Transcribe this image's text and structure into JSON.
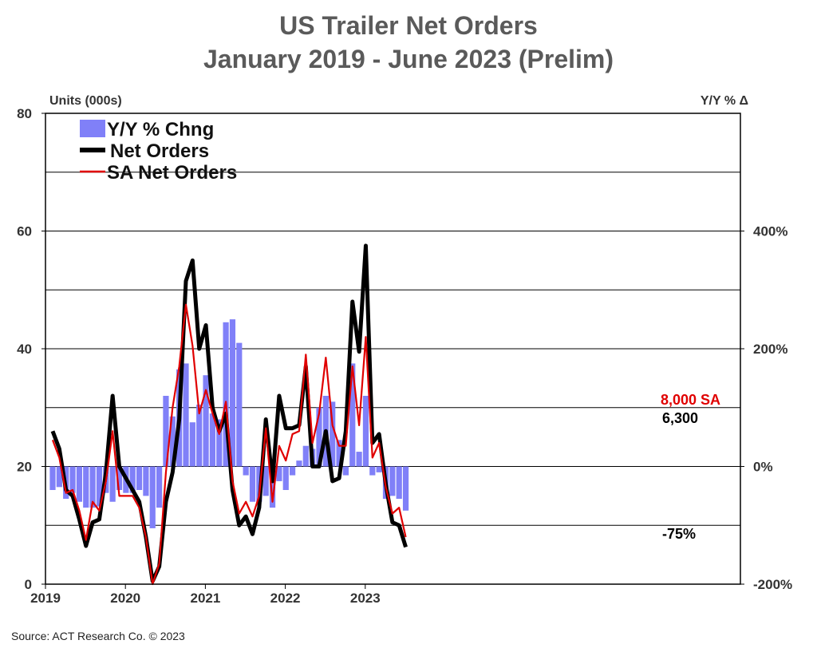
{
  "title": "US Trailer Net Orders",
  "subtitle": "January 2019 - June 2023 (Prelim)",
  "source": "Source: ACT Research Co. © 2023",
  "chart_data": {
    "type": "line",
    "left_axis_label": "Units (000s)",
    "right_axis_label": "Y/Y % Δ",
    "left_ticks": [
      "80",
      "60",
      "40",
      "20",
      "0"
    ],
    "left_range": [
      0,
      80
    ],
    "right_ticks": [
      "400%",
      "200%",
      "0%",
      "-200%"
    ],
    "right_range": [
      -200,
      600
    ],
    "x_tick_labels": [
      "2019",
      "2020",
      "2021",
      "2022",
      "2023"
    ],
    "colors": {
      "yoy": "#8080f8",
      "net": "#000000",
      "sa": "#e00000",
      "sa_label": "#e00000"
    },
    "legend": [
      "Y/Y % Chng",
      "Net Orders",
      "SA Net Orders"
    ],
    "grid": true,
    "annotations": {
      "sa_last": "8,000 SA",
      "net_last": "6,300",
      "yoy_last": "-75%"
    },
    "months": [
      "2019-01",
      "2019-02",
      "2019-03",
      "2019-04",
      "2019-05",
      "2019-06",
      "2019-07",
      "2019-08",
      "2019-09",
      "2019-10",
      "2019-11",
      "2019-12",
      "2020-01",
      "2020-02",
      "2020-03",
      "2020-04",
      "2020-05",
      "2020-06",
      "2020-07",
      "2020-08",
      "2020-09",
      "2020-10",
      "2020-11",
      "2020-12",
      "2021-01",
      "2021-02",
      "2021-03",
      "2021-04",
      "2021-05",
      "2021-06",
      "2021-07",
      "2021-08",
      "2021-09",
      "2021-10",
      "2021-11",
      "2021-12",
      "2022-01",
      "2022-02",
      "2022-03",
      "2022-04",
      "2022-05",
      "2022-06",
      "2022-07",
      "2022-08",
      "2022-09",
      "2022-10",
      "2022-11",
      "2022-12",
      "2023-01",
      "2023-02",
      "2023-03",
      "2023-04",
      "2023-05",
      "2023-06"
    ],
    "series": [
      {
        "name": "Net Orders",
        "values": [
          26,
          23,
          16,
          15,
          11,
          6.5,
          10.5,
          11,
          19,
          32,
          20,
          18,
          16,
          14,
          8,
          0.5,
          3,
          14,
          19,
          28,
          51.5,
          55,
          40,
          44,
          30,
          26,
          29,
          16,
          10,
          11.5,
          8.5,
          13,
          28,
          17.5,
          32,
          26.5,
          26.5,
          27,
          37,
          20,
          20,
          26,
          17.5,
          18,
          26,
          48,
          39.5,
          57.5,
          24,
          25.5,
          17,
          10.5,
          10,
          6.3
        ]
      },
      {
        "name": "SA Net Orders",
        "values": [
          24.5,
          21.5,
          15.5,
          16,
          12.5,
          7.5,
          14,
          12.5,
          17.5,
          26,
          15,
          15,
          15,
          13,
          8,
          0,
          3.5,
          19,
          30,
          37,
          47.5,
          40.5,
          29,
          33,
          29,
          25.5,
          31,
          17.5,
          12,
          14,
          11.5,
          15,
          26.5,
          14,
          23.5,
          21,
          25.5,
          26,
          39,
          24,
          29,
          38.5,
          27,
          23.5,
          23.5,
          37,
          27,
          42,
          21.5,
          24,
          16.5,
          12,
          13,
          8
        ]
      },
      {
        "name": "Y/Y % Chng",
        "values": [
          -40,
          -35,
          -55,
          -45,
          -60,
          -70,
          -70,
          -68,
          -45,
          -60,
          -40,
          -45,
          -45,
          -40,
          -50,
          -105,
          -70,
          120,
          85,
          165,
          175,
          75,
          105,
          155,
          90,
          80,
          245,
          250,
          210,
          -15,
          -60,
          -60,
          -50,
          -70,
          -25,
          -40,
          -15,
          10,
          35,
          30,
          100,
          120,
          110,
          45,
          -15,
          175,
          25,
          120,
          -15,
          -10,
          -55,
          -50,
          -55,
          -75
        ]
      }
    ]
  }
}
